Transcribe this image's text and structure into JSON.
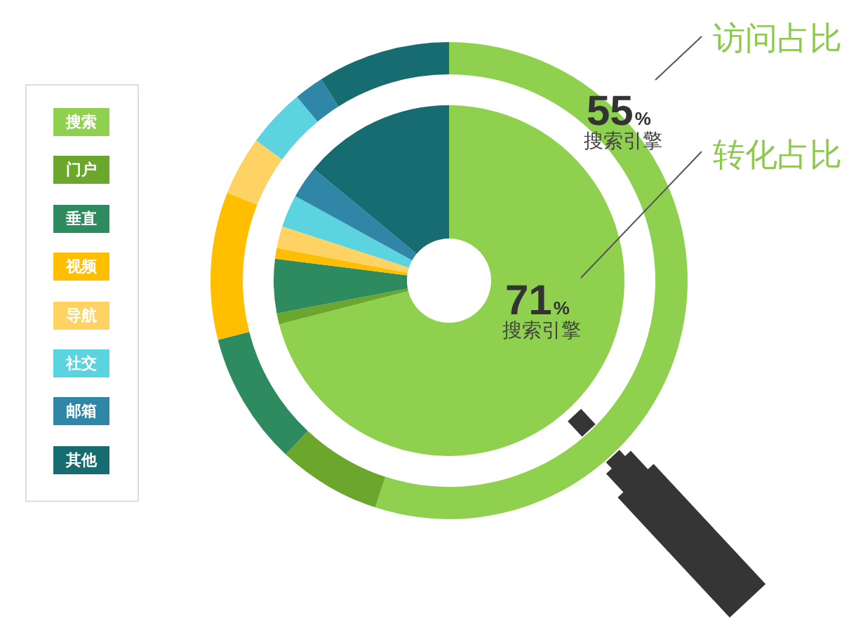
{
  "chart_data": {
    "type": "donut",
    "categories": [
      "搜索",
      "门户",
      "垂直",
      "视频",
      "导航",
      "社交",
      "邮箱",
      "其他"
    ],
    "colors": [
      "#8fd14f",
      "#6aa72c",
      "#2e8a5f",
      "#ffbf00",
      "#fed363",
      "#5cd4df",
      "#2f86a6",
      "#176c71"
    ],
    "series": [
      {
        "name": "访问占比",
        "values": [
          55,
          7,
          9,
          10,
          4,
          4,
          2,
          9
        ],
        "value_labels": [
          "55%",
          null,
          null,
          null,
          null,
          null,
          null,
          null
        ]
      },
      {
        "name": "转化占比",
        "values": [
          71,
          1,
          5,
          1,
          2,
          3,
          3,
          14
        ],
        "value_labels": [
          "71%",
          null,
          null,
          null,
          null,
          null,
          null,
          null
        ]
      }
    ],
    "annotations": [
      "搜索引擎",
      "搜索引擎"
    ],
    "legend": "left"
  }
}
